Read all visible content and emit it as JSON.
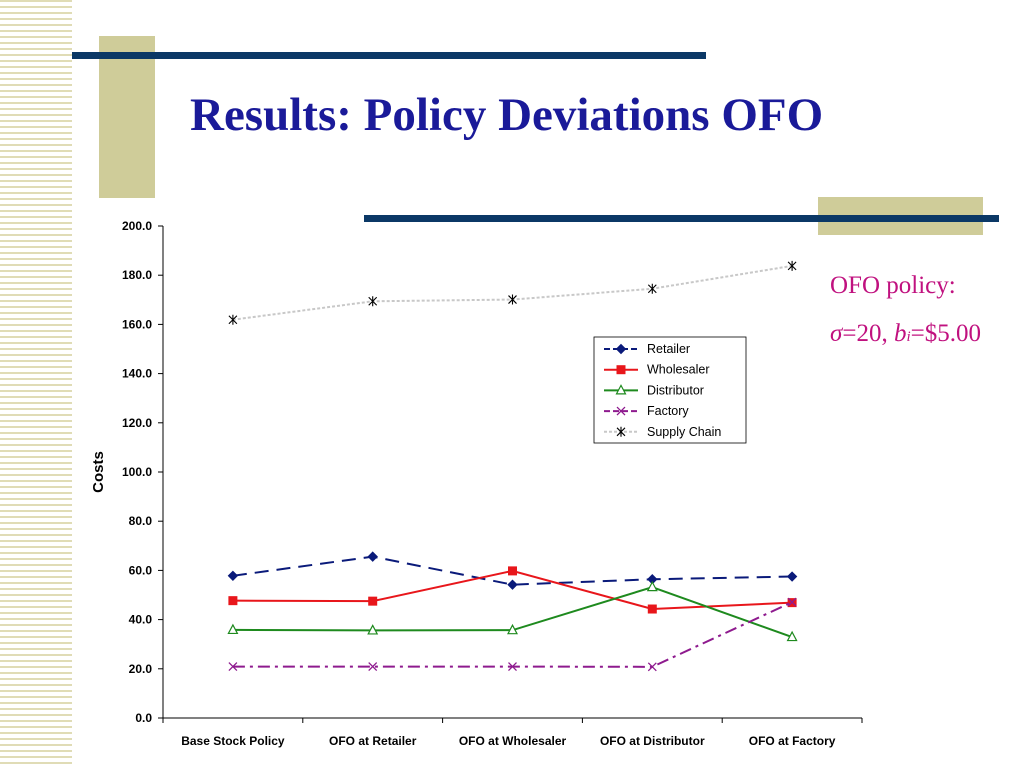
{
  "slide": {
    "title": "Results: Policy Deviations OFO",
    "note_line1": "OFO policy:",
    "note_sigma_symbol": "σ",
    "note_sigma_value": "=20, ",
    "note_b_symbol": "b",
    "note_b_subscript": "i",
    "note_b_value": "=$5.00"
  },
  "chart_data": {
    "type": "line",
    "title": "",
    "xlabel": "",
    "ylabel": "Costs",
    "ylim": [
      0,
      200
    ],
    "yticks": [
      "0.0",
      "20.0",
      "40.0",
      "60.0",
      "80.0",
      "100.0",
      "120.0",
      "140.0",
      "160.0",
      "180.0",
      "200.0"
    ],
    "categories": [
      "Base Stock Policy",
      "OFO at Retailer",
      "OFO at Wholesaler",
      "OFO at Distributor",
      "OFO at Factory"
    ],
    "grid": false,
    "legend_position": "inside-right",
    "series": [
      {
        "name": "Retailer",
        "values": [
          57.8,
          65.6,
          54.2,
          56.4,
          57.5
        ],
        "color": "#0a1a7a",
        "dash": "long-dash",
        "marker": "diamond"
      },
      {
        "name": "Wholesaler",
        "values": [
          47.7,
          47.5,
          59.8,
          44.3,
          46.9
        ],
        "color": "#e8161b",
        "dash": "solid",
        "marker": "square"
      },
      {
        "name": "Distributor",
        "values": [
          35.8,
          35.6,
          35.7,
          53.2,
          32.9
        ],
        "color": "#1e8a1e",
        "dash": "solid",
        "marker": "triangle-open"
      },
      {
        "name": "Factory",
        "values": [
          20.9,
          20.9,
          20.9,
          20.8,
          47.1
        ],
        "color": "#8e1a8e",
        "dash": "dash-dot",
        "marker": "x"
      },
      {
        "name": "Supply Chain",
        "values": [
          161.9,
          169.4,
          170.1,
          174.5,
          183.8
        ],
        "color": "#c8c8c8",
        "dash": "dotted",
        "marker": "asterisk"
      }
    ]
  }
}
